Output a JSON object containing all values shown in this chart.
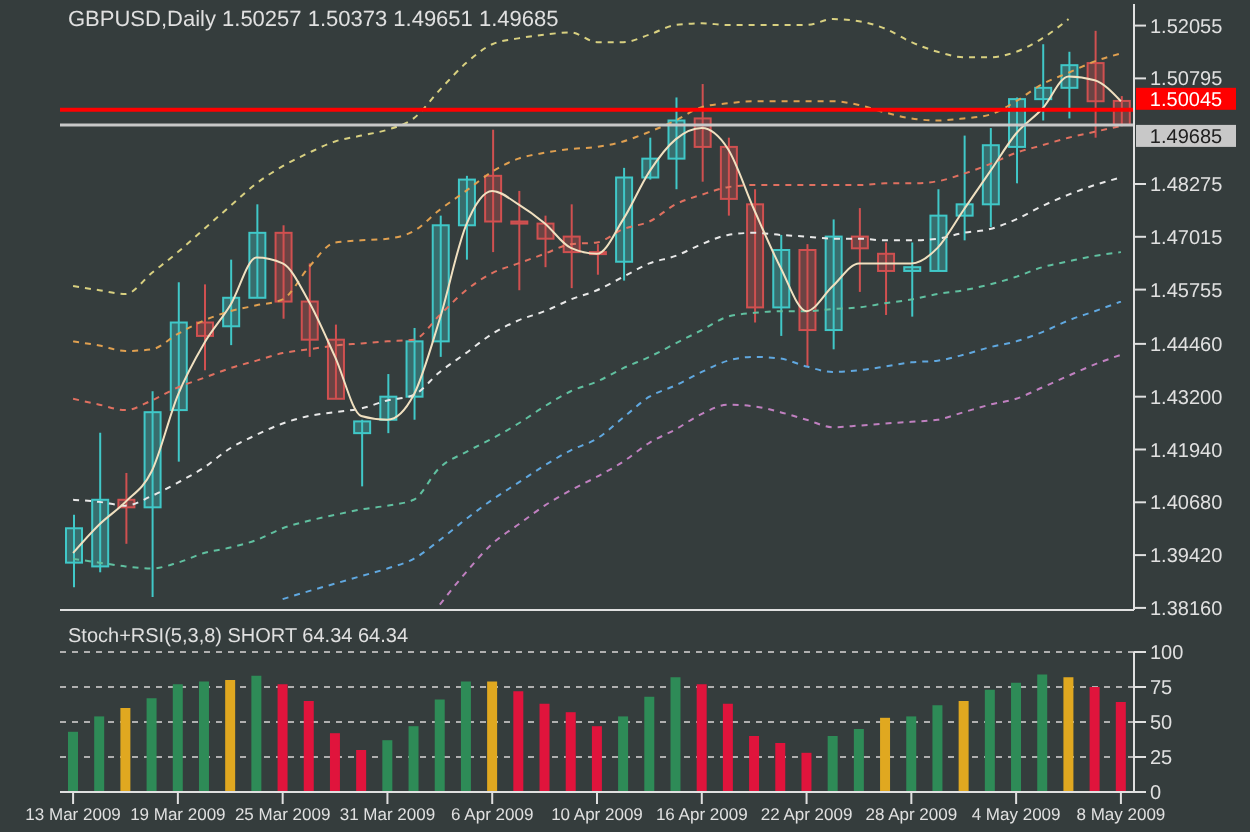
{
  "chart_data": [
    {
      "type": "candlestick",
      "title": "GBPUSD,Daily  1.50257 1.50373 1.49651 1.49685",
      "categories": [
        null,
        null,
        null,
        null,
        null,
        null,
        null,
        null,
        null,
        null,
        null,
        null,
        null,
        null,
        null,
        null,
        null,
        null,
        null,
        null,
        null,
        null,
        null,
        null,
        null,
        null,
        null,
        null,
        null,
        null,
        null,
        null,
        null,
        null,
        null,
        null,
        null,
        null,
        null,
        null,
        null
      ],
      "ohlc": [
        [
          1.3924,
          1.4038,
          1.3865,
          1.4006
        ],
        [
          1.3915,
          1.4234,
          1.3901,
          1.4074
        ],
        [
          1.4074,
          1.4138,
          1.3969,
          1.4056
        ],
        [
          1.4056,
          1.4333,
          1.3842,
          1.4283
        ],
        [
          1.4288,
          1.4593,
          1.4165,
          1.4497
        ],
        [
          1.4497,
          1.4588,
          1.4383,
          1.4465
        ],
        [
          1.4488,
          1.4647,
          1.4443,
          1.4556
        ],
        [
          1.4556,
          1.4779,
          1.4556,
          1.4711
        ],
        [
          1.4711,
          1.4729,
          1.4506,
          1.4547
        ],
        [
          1.4547,
          1.4638,
          1.4415,
          1.4456
        ],
        [
          1.4456,
          1.4492,
          1.4315,
          1.4315
        ],
        [
          1.4233,
          1.4265,
          1.4106,
          1.4261
        ],
        [
          1.4265,
          1.4374,
          1.4233,
          1.432
        ],
        [
          1.432,
          1.4484,
          1.4265,
          1.4452
        ],
        [
          1.4452,
          1.4752,
          1.4415,
          1.4729
        ],
        [
          1.4729,
          1.4847,
          1.4647,
          1.4838
        ],
        [
          1.4847,
          1.4957,
          1.4665,
          1.4738
        ],
        [
          1.4738,
          1.4811,
          1.4574,
          1.4733
        ],
        [
          1.4733,
          1.4752,
          1.4629,
          1.4697
        ],
        [
          1.4702,
          1.4779,
          1.4579,
          1.4665
        ],
        [
          1.4665,
          1.4684,
          1.4611,
          1.4661
        ],
        [
          1.4642,
          1.4866,
          1.4597,
          1.4843
        ],
        [
          1.4843,
          1.4938,
          1.4838,
          1.4888
        ],
        [
          1.4888,
          1.5034,
          1.4815,
          1.4979
        ],
        [
          1.4984,
          1.5066,
          1.4833,
          1.4916
        ],
        [
          1.4916,
          1.4938,
          1.4752,
          1.4792
        ],
        [
          1.4779,
          1.4815,
          1.4497,
          1.4533
        ],
        [
          1.4533,
          1.4706,
          1.4465,
          1.467
        ],
        [
          1.467,
          1.4684,
          1.4392,
          1.4479
        ],
        [
          1.4479,
          1.4743,
          1.4433,
          1.4702
        ],
        [
          1.4702,
          1.477,
          1.457,
          1.4674
        ],
        [
          1.4661,
          1.4688,
          1.4515,
          1.462
        ],
        [
          1.462,
          1.4688,
          1.4511,
          1.4629
        ],
        [
          1.462,
          1.4815,
          1.462,
          1.4752
        ],
        [
          1.4752,
          1.4943,
          1.4693,
          1.4779
        ],
        [
          1.4779,
          1.4961,
          1.4725,
          1.492
        ],
        [
          1.4916,
          1.5034,
          1.4829,
          1.503
        ],
        [
          1.503,
          1.5161,
          1.4979,
          1.5057
        ],
        [
          1.5057,
          1.5143,
          1.4984,
          1.5111
        ],
        [
          1.5116,
          1.5193,
          1.4938,
          1.5025
        ],
        [
          1.50257,
          1.50373,
          1.49651,
          1.49685
        ]
      ],
      "colors": [
        "#40c8c8",
        "#40c8c8",
        "#d05050",
        "#40c8c8",
        "#40c8c8",
        "#d05050",
        "#40c8c8",
        "#40c8c8",
        "#d05050",
        "#d05050",
        "#d05050",
        "#40c8c8",
        "#40c8c8",
        "#40c8c8",
        "#40c8c8",
        "#40c8c8",
        "#d05050",
        "#d05050",
        "#d05050",
        "#d05050",
        "#d05050",
        "#40c8c8",
        "#40c8c8",
        "#40c8c8",
        "#d05050",
        "#d05050",
        "#d05050",
        "#40c8c8",
        "#d05050",
        "#40c8c8",
        "#d05050",
        "#d05050",
        "#40c8c8",
        "#40c8c8",
        "#40c8c8",
        "#40c8c8",
        "#40c8c8",
        "#40c8c8",
        "#40c8c8",
        "#d05050",
        "#d05050"
      ],
      "series": [
        {
          "type": "line",
          "color": "#d8d080",
          "line_style": "dashed",
          "values": [
            1.4584,
            1.4574,
            1.4565,
            1.4615,
            1.4665,
            1.472,
            1.4775,
            1.4829,
            1.487,
            1.4902,
            1.4929,
            1.4943,
            1.4957,
            1.4984,
            1.5052,
            1.5116,
            1.5161,
            1.5175,
            1.5184,
            1.5189,
            1.5166,
            1.5166,
            1.5184,
            1.5207,
            1.5211,
            1.5207,
            1.5207,
            1.5207,
            1.5207,
            1.5221,
            1.5216,
            1.5198,
            1.5166,
            1.5143,
            1.513,
            1.513,
            1.5143,
            1.5175,
            1.5221,
            null,
            null
          ]
        },
        {
          "type": "line",
          "color": "#e0a050",
          "line_style": "dashed",
          "values": [
            1.4452,
            1.4442,
            1.4429,
            1.4433,
            1.447,
            1.4502,
            1.4524,
            1.4538,
            1.4552,
            1.4629,
            1.4688,
            1.4693,
            1.4697,
            1.4715,
            1.4766,
            1.4811,
            1.4857,
            1.4888,
            1.4902,
            1.4911,
            1.4916,
            1.4929,
            1.4952,
            1.4979,
            1.5011,
            1.502,
            1.5025,
            1.5025,
            1.5025,
            1.5025,
            1.5016,
            1.4998,
            1.4984,
            1.4979,
            1.4984,
            1.4993,
            1.5025,
            1.5066,
            1.5093,
            1.512,
            1.5139
          ]
        },
        {
          "type": "line",
          "color": "#e07060",
          "line_style": "dashed",
          "values": [
            1.4315,
            1.4301,
            1.4288,
            1.4311,
            1.4342,
            1.4365,
            1.4388,
            1.4406,
            1.4424,
            1.4433,
            1.4442,
            1.4447,
            1.4452,
            1.4456,
            1.4515,
            1.4574,
            1.4615,
            1.4638,
            1.4661,
            1.4684,
            1.4688,
            1.472,
            1.4738,
            1.4779,
            1.4802,
            1.482,
            1.4825,
            1.4825,
            1.4825,
            1.4825,
            1.4825,
            1.4829,
            1.4829,
            1.4834,
            1.4852,
            1.4875,
            1.4902,
            1.492,
            1.4938,
            1.4952,
            1.4966
          ]
        },
        {
          "type": "line",
          "color": "#e8e8e8",
          "line_style": "dashed",
          "values": [
            1.4074,
            1.4069,
            1.406,
            1.4083,
            1.4115,
            1.4151,
            1.4197,
            1.4229,
            1.4256,
            1.4274,
            1.4283,
            1.4292,
            1.4311,
            1.4324,
            1.4379,
            1.4424,
            1.447,
            1.4502,
            1.4524,
            1.4552,
            1.4574,
            1.4606,
            1.4638,
            1.4656,
            1.4684,
            1.4706,
            1.4711,
            1.4706,
            1.4702,
            1.4697,
            1.4697,
            1.4693,
            1.4693,
            1.4697,
            1.4711,
            1.472,
            1.4743,
            1.4775,
            1.4802,
            1.4825,
            1.4843
          ]
        },
        {
          "type": "line",
          "color": "#60c0a0",
          "line_style": "dashed",
          "values": [
            1.3933,
            1.3924,
            1.3915,
            1.391,
            1.3924,
            1.3947,
            1.396,
            1.3978,
            1.4006,
            1.4024,
            1.4038,
            1.4051,
            1.406,
            1.4074,
            1.4151,
            1.4188,
            1.422,
            1.4256,
            1.4297,
            1.4333,
            1.4356,
            1.4388,
            1.4415,
            1.4447,
            1.4479,
            1.4511,
            1.452,
            1.4524,
            1.4524,
            1.4529,
            1.4533,
            1.4543,
            1.4552,
            1.4565,
            1.4574,
            1.4588,
            1.4606,
            1.4629,
            1.4643,
            1.4656,
            1.4665
          ]
        },
        {
          "type": "line",
          "color": "#60a8e0",
          "line_style": "dashed",
          "values": [
            null,
            null,
            null,
            null,
            null,
            null,
            null,
            null,
            1.3837,
            1.3856,
            1.3874,
            1.3892,
            1.391,
            1.3933,
            1.3978,
            1.4028,
            1.4074,
            1.4115,
            1.4156,
            1.4192,
            1.422,
            1.427,
            1.432,
            1.4347,
            1.4379,
            1.4406,
            1.4415,
            1.4411,
            1.4392,
            1.4379,
            1.4383,
            1.4392,
            1.4402,
            1.4406,
            1.442,
            1.4438,
            1.4452,
            1.4474,
            1.4502,
            1.4524,
            1.4547
          ]
        },
        {
          "type": "line",
          "color": "#c080c0",
          "line_style": "dashed",
          "values": [
            null,
            null,
            null,
            null,
            null,
            null,
            null,
            null,
            null,
            null,
            null,
            null,
            null,
            null,
            1.3824,
            1.3901,
            1.3969,
            1.4015,
            1.406,
            1.4097,
            1.4129,
            1.4165,
            1.421,
            1.4242,
            1.4279,
            1.4301,
            1.4297,
            1.4283,
            1.4265,
            1.4247,
            1.4251,
            1.4256,
            1.426,
            1.4265,
            1.4283,
            1.4301,
            1.4315,
            1.4342,
            1.437,
            1.4397,
            1.442
          ]
        },
        {
          "type": "line",
          "color": "#f0e0c0",
          "line_style": "solid",
          "values": [
            1.3947,
            1.4015,
            1.4069,
            1.4142,
            1.4324,
            1.4447,
            1.4538,
            1.4652,
            1.4638,
            1.4547,
            1.4415,
            1.4274,
            1.4265,
            1.4324,
            1.4506,
            1.4729,
            1.4811,
            1.4779,
            1.4734,
            1.4675,
            1.4661,
            1.4743,
            1.4857,
            1.4934,
            1.4961,
            1.4911,
            1.4766,
            1.4629,
            1.4524,
            1.4584,
            1.4638,
            1.4638,
            1.4638,
            1.4675,
            1.4766,
            1.4857,
            1.4948,
            1.5007,
            1.5084,
            1.5075,
            1.5025
          ]
        }
      ],
      "ylim": [
        1.3811,
        1.5257
      ],
      "yticks": [
        {
          "value": 1.3816,
          "label": "1.38160"
        },
        {
          "value": 1.3942,
          "label": "1.39420"
        },
        {
          "value": 1.4068,
          "label": "1.40680"
        },
        {
          "value": 1.4194,
          "label": "1.41940"
        },
        {
          "value": 1.432,
          "label": "1.43200"
        },
        {
          "value": 1.4446,
          "label": "1.44460"
        },
        {
          "value": 1.45755,
          "label": "1.45755"
        },
        {
          "value": 1.47015,
          "label": "1.47015"
        },
        {
          "value": 1.48275,
          "label": "1.48275"
        },
        {
          "value": 1.50795,
          "label": "1.50795"
        },
        {
          "value": 1.52055,
          "label": "1.52055"
        }
      ],
      "tick_labels": "y",
      "ref_lines": [
        {
          "axis": "y",
          "value": 1.50045,
          "label": "1.50045",
          "color": "#ff0000"
        },
        {
          "axis": "y",
          "value": 1.49685,
          "label": "1.49685",
          "color": "#c8c8c8"
        }
      ]
    },
    {
      "type": "bar",
      "title": "Stoch+RSI(5,3,8) SHORT 64.34 64.34",
      "categories": [
        "13 Mar 2009",
        null,
        null,
        null,
        "19 Mar 2009",
        null,
        null,
        null,
        "25 Mar 2009",
        null,
        null,
        null,
        "31 Mar 2009",
        null,
        null,
        null,
        "6 Apr 2009",
        null,
        null,
        null,
        "10 Apr 2009",
        null,
        null,
        null,
        "16 Apr 2009",
        null,
        null,
        null,
        "22 Apr 2009",
        null,
        null,
        null,
        "28 Apr 2009",
        null,
        null,
        null,
        "4 May 2009",
        null,
        null,
        null,
        "8 May 2009"
      ],
      "values": [
        43,
        54,
        60,
        67,
        77,
        79,
        80,
        83,
        77,
        65,
        42,
        30,
        37,
        47,
        66,
        79,
        79,
        72,
        63,
        57,
        47,
        54,
        68,
        82,
        77,
        63,
        40,
        35,
        28,
        40,
        45,
        53,
        54,
        62,
        65,
        73,
        78,
        84,
        82,
        75,
        64.34
      ],
      "colors": [
        "#2e8b57",
        "#2e8b57",
        "#e0a820",
        "#2e8b57",
        "#2e8b57",
        "#2e8b57",
        "#e0a820",
        "#2e8b57",
        "#e0143c",
        "#e0143c",
        "#e0143c",
        "#e0143c",
        "#2e8b57",
        "#2e8b57",
        "#2e8b57",
        "#2e8b57",
        "#e0a820",
        "#e0143c",
        "#e0143c",
        "#e0143c",
        "#e0143c",
        "#2e8b57",
        "#2e8b57",
        "#2e8b57",
        "#e0143c",
        "#e0143c",
        "#e0143c",
        "#e0143c",
        "#e0143c",
        "#2e8b57",
        "#2e8b57",
        "#e0a820",
        "#2e8b57",
        "#2e8b57",
        "#e0a820",
        "#2e8b57",
        "#2e8b57",
        "#2e8b57",
        "#e0a820",
        "#e0143c",
        "#e0143c"
      ],
      "ylim": [
        0,
        100
      ],
      "yticks": [
        0,
        25,
        50,
        75,
        100
      ],
      "grid": "y"
    }
  ]
}
